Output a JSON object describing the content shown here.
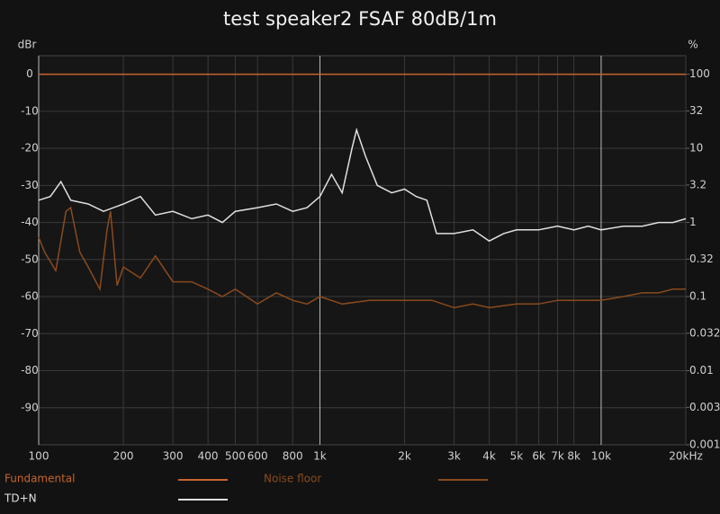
{
  "chart_data": {
    "type": "line",
    "title": "test speaker2 FSAF 80dB/1m",
    "y_label": "dBr",
    "y2_label": "%",
    "xscale": "log",
    "y2scale": "log",
    "grid": true,
    "xlim": [
      100,
      20000
    ],
    "xticks": [
      100,
      200,
      300,
      400,
      500,
      600,
      800,
      {
        "value": 1000,
        "label": "1k"
      },
      {
        "value": 2000,
        "label": "2k"
      },
      {
        "value": 3000,
        "label": "3k"
      },
      {
        "value": 4000,
        "label": "4k"
      },
      {
        "value": 5000,
        "label": "5k"
      },
      {
        "value": 6000,
        "label": "6k"
      },
      {
        "value": 7000,
        "label": "7k"
      },
      {
        "value": 8000,
        "label": "8k"
      },
      {
        "value": 10000,
        "label": "10k"
      },
      {
        "value": 20000,
        "label": "20kHz"
      }
    ],
    "ylim": [
      -100,
      5
    ],
    "yticks": [
      0,
      -10,
      -20,
      -30,
      -40,
      -50,
      -60,
      -70,
      -80,
      -90
    ],
    "y2lim": [
      0.001,
      177.8
    ],
    "y2ticks": [
      100,
      32,
      10,
      3.2,
      1,
      0.32,
      0.1,
      0.032,
      0.01,
      0.0032,
      0.001
    ],
    "series": [
      {
        "name": "Fundamental",
        "color": "#c8642c",
        "x": [
          100,
          20000
        ],
        "values": [
          0,
          0
        ]
      },
      {
        "name": "Noise floor",
        "color": "#8a4a1e",
        "x": [
          100,
          105,
          115,
          125,
          130,
          140,
          150,
          165,
          175,
          180,
          190,
          200,
          230,
          260,
          300,
          350,
          400,
          450,
          500,
          600,
          700,
          800,
          900,
          1000,
          1200,
          1500,
          2000,
          2500,
          3000,
          3500,
          4000,
          5000,
          6000,
          7000,
          8000,
          10000,
          12000,
          14000,
          16000,
          18000,
          20000
        ],
        "values": [
          -44,
          -48,
          -53,
          -37,
          -36,
          -48,
          -52,
          -58,
          -42,
          -37,
          -57,
          -52,
          -55,
          -49,
          -56,
          -56,
          -58,
          -60,
          -58,
          -62,
          -59,
          -61,
          -62,
          -60,
          -62,
          -61,
          -61,
          -61,
          -63,
          -62,
          -63,
          -62,
          -62,
          -61,
          -61,
          -61,
          -60,
          -59,
          -59,
          -58,
          -58
        ]
      },
      {
        "name": "TD+N",
        "color": "#e0e0e0",
        "x": [
          100,
          110,
          120,
          130,
          150,
          170,
          200,
          230,
          260,
          300,
          350,
          400,
          450,
          500,
          600,
          700,
          800,
          900,
          1000,
          1100,
          1200,
          1300,
          1350,
          1450,
          1600,
          1800,
          2000,
          2200,
          2400,
          2600,
          3000,
          3500,
          4000,
          4500,
          5000,
          6000,
          7000,
          8000,
          9000,
          10000,
          12000,
          14000,
          16000,
          18000,
          20000
        ],
        "values": [
          -34,
          -33,
          -29,
          -34,
          -35,
          -37,
          -35,
          -33,
          -38,
          -37,
          -39,
          -38,
          -40,
          -37,
          -36,
          -35,
          -37,
          -36,
          -33,
          -27,
          -32,
          -20,
          -15,
          -22,
          -30,
          -32,
          -31,
          -33,
          -34,
          -43,
          -43,
          -42,
          -45,
          -43,
          -42,
          -42,
          -41,
          -42,
          -41,
          -42,
          -41,
          -41,
          -40,
          -40,
          -39
        ]
      }
    ]
  }
}
